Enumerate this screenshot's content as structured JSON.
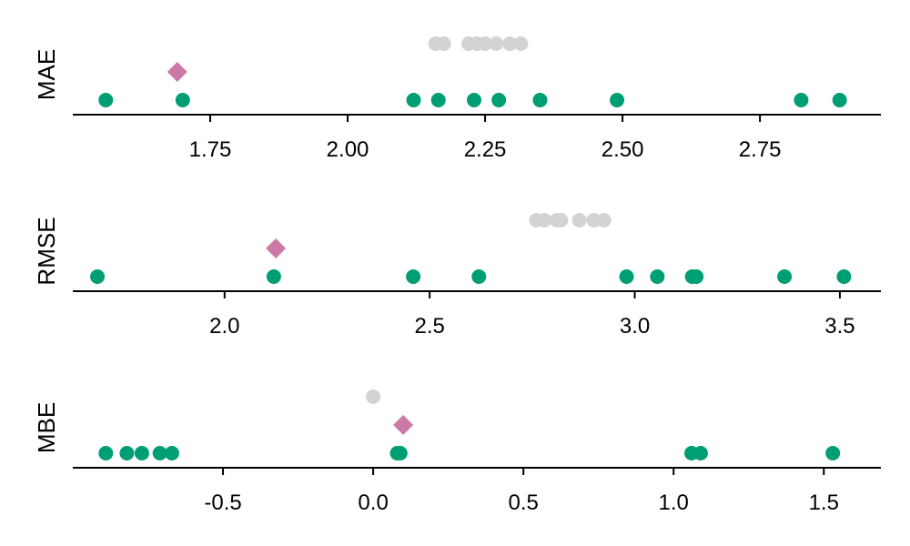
{
  "chart_data": [
    {
      "type": "scatter",
      "ylabel": "MAE",
      "xlim": [
        1.5,
        2.97
      ],
      "ticks": [
        1.75,
        2.0,
        2.25,
        2.5,
        2.75
      ],
      "tick_labels": [
        "1.75",
        "2.00",
        "2.25",
        "2.50",
        "2.75"
      ],
      "series": [
        {
          "color": "#009e73",
          "marker": "circle",
          "level": 0,
          "values": [
            1.56,
            1.7,
            2.12,
            2.165,
            2.23,
            2.275,
            2.35,
            2.49,
            2.825,
            2.895
          ]
        },
        {
          "color": "#cc79a7",
          "marker": "diamond",
          "level": 1,
          "values": [
            1.69
          ]
        },
        {
          "color": "#d3d3d3",
          "marker": "circle",
          "level": 2,
          "values": [
            2.16,
            2.175,
            2.22,
            2.235,
            2.25,
            2.27,
            2.295,
            2.315
          ]
        }
      ]
    },
    {
      "type": "scatter",
      "ylabel": "RMSE",
      "xlim": [
        1.63,
        3.6
      ],
      "ticks": [
        2.0,
        2.5,
        3.0,
        3.5
      ],
      "tick_labels": [
        "2.0",
        "2.5",
        "3.0",
        "3.5"
      ],
      "series": [
        {
          "color": "#009e73",
          "marker": "circle",
          "level": 0,
          "values": [
            1.69,
            2.12,
            2.46,
            2.62,
            2.98,
            3.055,
            3.14,
            3.15,
            3.365,
            3.51
          ]
        },
        {
          "color": "#cc79a7",
          "marker": "diamond",
          "level": 1,
          "values": [
            2.125
          ]
        },
        {
          "color": "#d3d3d3",
          "marker": "circle",
          "level": 2,
          "values": [
            2.76,
            2.78,
            2.81,
            2.82,
            2.865,
            2.9,
            2.925
          ]
        }
      ]
    },
    {
      "type": "scatter",
      "ylabel": "MBE",
      "xlim": [
        -1.0,
        1.69
      ],
      "ticks": [
        -0.5,
        0.0,
        0.5,
        1.0,
        1.5
      ],
      "tick_labels": [
        "-0.5",
        "0.0",
        "0.5",
        "1.0",
        "1.5"
      ],
      "series": [
        {
          "color": "#009e73",
          "marker": "circle",
          "level": 0,
          "values": [
            -0.89,
            -0.82,
            -0.77,
            -0.71,
            -0.67,
            0.08,
            0.09,
            1.06,
            1.09,
            1.53
          ]
        },
        {
          "color": "#cc79a7",
          "marker": "diamond",
          "level": 1,
          "values": [
            0.1
          ]
        },
        {
          "color": "#d3d3d3",
          "marker": "circle",
          "level": 2,
          "values": [
            0.0
          ]
        }
      ]
    }
  ]
}
